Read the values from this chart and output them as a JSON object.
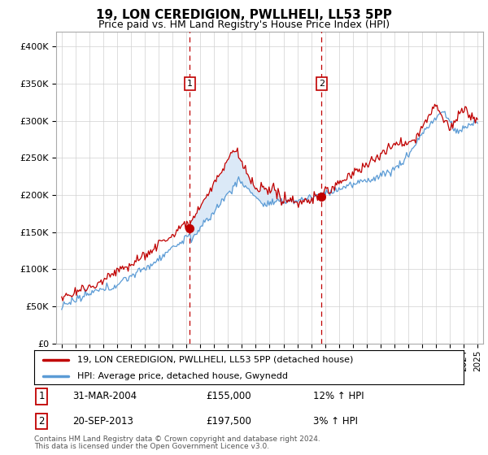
{
  "title": "19, LON CEREDIGION, PWLLHELI, LL53 5PP",
  "subtitle": "Price paid vs. HM Land Registry's House Price Index (HPI)",
  "legend_line1": "19, LON CEREDIGION, PWLLHELI, LL53 5PP (detached house)",
  "legend_line2": "HPI: Average price, detached house, Gwynedd",
  "footnote1": "Contains HM Land Registry data © Crown copyright and database right 2024.",
  "footnote2": "This data is licensed under the Open Government Licence v3.0.",
  "sale1_label": "1",
  "sale1_date": "31-MAR-2004",
  "sale1_price": "£155,000",
  "sale1_hpi": "12% ↑ HPI",
  "sale1_year": 2004.25,
  "sale1_value": 155000,
  "sale2_label": "2",
  "sale2_date": "20-SEP-2013",
  "sale2_price": "£197,500",
  "sale2_hpi": "3% ↑ HPI",
  "sale2_year": 2013.75,
  "sale2_value": 197500,
  "hpi_color": "#5b9bd5",
  "price_color": "#c00000",
  "fill_color": "#dbe9f7",
  "background_color": "#ffffff",
  "grid_color": "#d0d0d0",
  "ylim": [
    0,
    420000
  ],
  "yticks": [
    0,
    50000,
    100000,
    150000,
    200000,
    250000,
    300000,
    350000,
    400000
  ],
  "xlim": [
    1994.6,
    2025.4
  ]
}
